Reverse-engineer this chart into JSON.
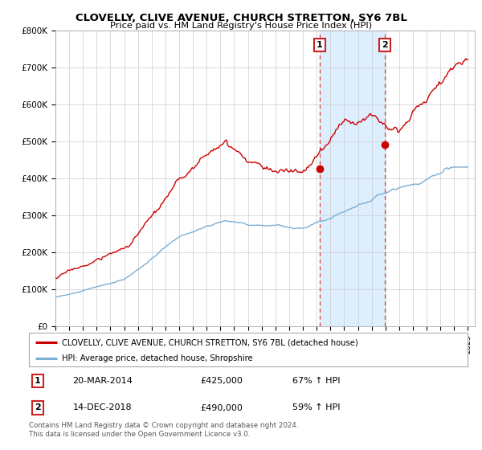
{
  "title": "CLOVELLY, CLIVE AVENUE, CHURCH STRETTON, SY6 7BL",
  "subtitle": "Price paid vs. HM Land Registry's House Price Index (HPI)",
  "ylabel_ticks": [
    "£0",
    "£100K",
    "£200K",
    "£300K",
    "£400K",
    "£500K",
    "£600K",
    "£700K",
    "£800K"
  ],
  "ylim": [
    0,
    800000
  ],
  "xlim_start": 1995,
  "xlim_end": 2025.5,
  "red_line_color": "#cc0000",
  "blue_line_color": "#7bafd4",
  "highlight_fill": "#ddeeff",
  "vline_color": "#dd4444",
  "marker1_x": 2014.22,
  "marker1_y": 425000,
  "marker2_x": 2018.95,
  "marker2_y": 490000,
  "legend_red_label": "CLOVELLY, CLIVE AVENUE, CHURCH STRETTON, SY6 7BL (detached house)",
  "legend_blue_label": "HPI: Average price, detached house, Shropshire",
  "annotation1_date": "20-MAR-2014",
  "annotation1_price": "£425,000",
  "annotation1_hpi": "67% ↑ HPI",
  "annotation2_date": "14-DEC-2018",
  "annotation2_price": "£490,000",
  "annotation2_hpi": "59% ↑ HPI",
  "footer": "Contains HM Land Registry data © Crown copyright and database right 2024.\nThis data is licensed under the Open Government Licence v3.0.",
  "background_color": "#ffffff",
  "grid_color": "#cccccc"
}
